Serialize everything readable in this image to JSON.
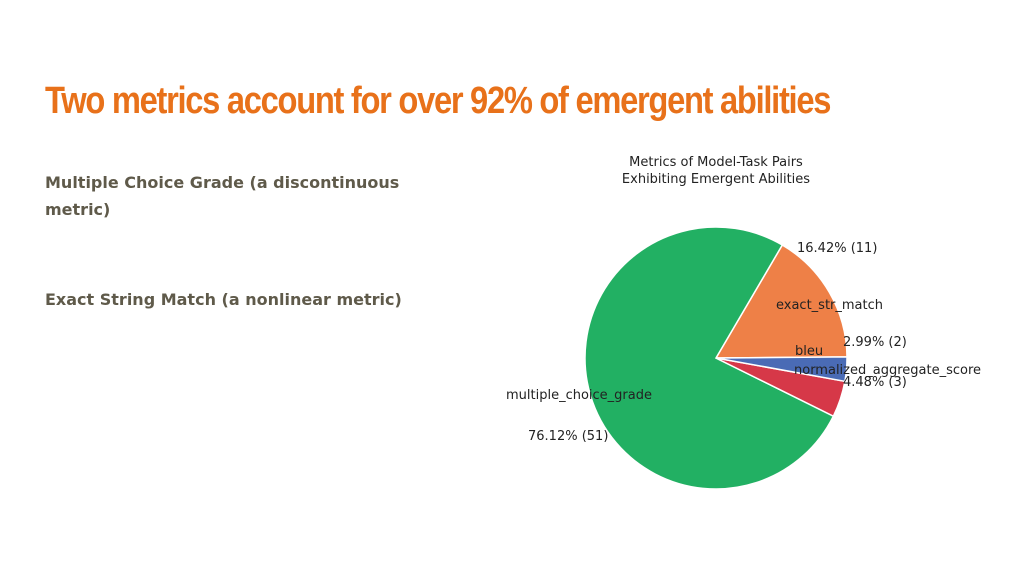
{
  "slide": {
    "title": "Two metrics account for over 92% of emergent abilities",
    "bullets": [
      "Multiple Choice Grade (a discontinuous metric)",
      "Exact String Match (a nonlinear metric)"
    ]
  },
  "chart_data": {
    "type": "pie",
    "title": "Metrics of Model-Task Pairs\nExhibiting Emergent Abilities",
    "slices": [
      {
        "label": "multiple_choice_grade",
        "value": 51,
        "pct_label": "76.12%  (51)",
        "color": "#22b063"
      },
      {
        "label": "exact_str_match",
        "value": 11,
        "pct_label": "16.42%  (11)",
        "color": "#ee8047"
      },
      {
        "label": "bleu",
        "value": 2,
        "pct_label": "2.99%  (2)",
        "color": "#4a6bb5"
      },
      {
        "label": "normalized_aggregate_score",
        "value": 3,
        "pct_label": "4.48%  (3)",
        "color": "#d63848"
      }
    ]
  }
}
